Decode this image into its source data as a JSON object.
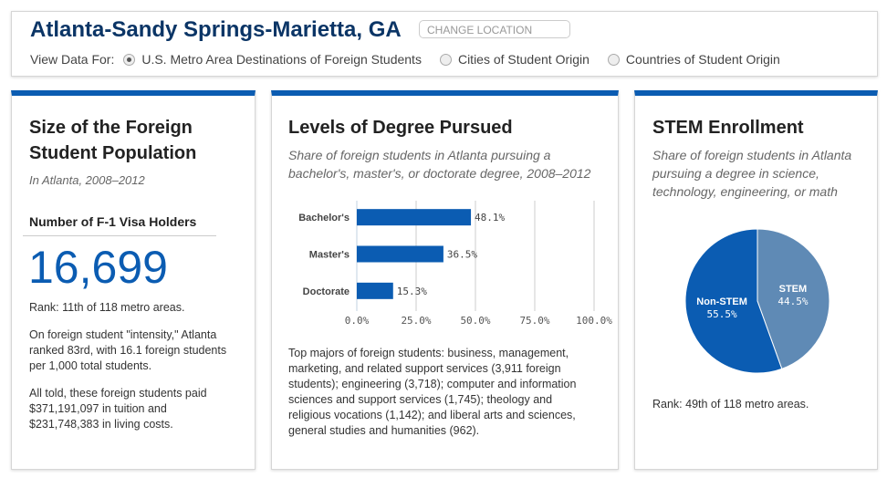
{
  "header": {
    "title": "Atlanta-Sandy Springs-Marietta, GA",
    "change_location": "CHANGE LOCATION",
    "view_label": "View Data For:",
    "options": [
      {
        "label": "U.S. Metro Area Destinations of Foreign Students",
        "selected": true
      },
      {
        "label": "Cities of Student Origin",
        "selected": false
      },
      {
        "label": "Countries of Student Origin",
        "selected": false
      }
    ]
  },
  "size_card": {
    "title": "Size of the Foreign Student Population",
    "subtitle": "In Atlanta, 2008–2012",
    "metric_label": "Number of F-1 Visa Holders",
    "metric_value": "16,699",
    "rank": "Rank: 11th of 118 metro areas.",
    "intensity": "On foreign student \"intensity,\" Atlanta ranked 83rd, with 16.1 foreign students per 1,000 total students.",
    "costs": "All told, these foreign students paid $371,191,097 in tuition and $231,748,383 in living costs."
  },
  "degree_card": {
    "title": "Levels of Degree Pursued",
    "subtitle": "Share of foreign students in Atlanta pursuing a bachelor's, master's, or doctorate degree, 2008–2012",
    "majors": "Top majors of foreign students: business, management, marketing, and related support services (3,911 foreign students); engineering (3,718); computer and information sciences and support services (1,745); theology and religious vocations (1,142); and liberal arts and sciences, general studies and humanities (962)."
  },
  "stem_card": {
    "title": "STEM Enrollment",
    "subtitle": "Share of foreign students in Atlanta pursuing a degree in science, technology, engineering, or math",
    "rank": "Rank: 49th of 118 metro areas."
  },
  "chart_data": [
    {
      "type": "bar",
      "orientation": "horizontal",
      "categories": [
        "Bachelor's",
        "Master's",
        "Doctorate"
      ],
      "values": [
        48.1,
        36.5,
        15.3
      ],
      "labels": [
        "48.1%",
        "36.5%",
        "15.3%"
      ],
      "xlim": [
        0,
        100
      ],
      "xticks": [
        "0.0%",
        "25.0%",
        "50.0%",
        "75.0%",
        "100.0%"
      ],
      "color": "#0b5cb2"
    },
    {
      "type": "pie",
      "slices": [
        {
          "name": "STEM",
          "value": 44.5,
          "label": "44.5%",
          "color": "#5f8ab5"
        },
        {
          "name": "Non-STEM",
          "value": 55.5,
          "label": "55.5%",
          "color": "#0b5cb2"
        }
      ]
    }
  ]
}
